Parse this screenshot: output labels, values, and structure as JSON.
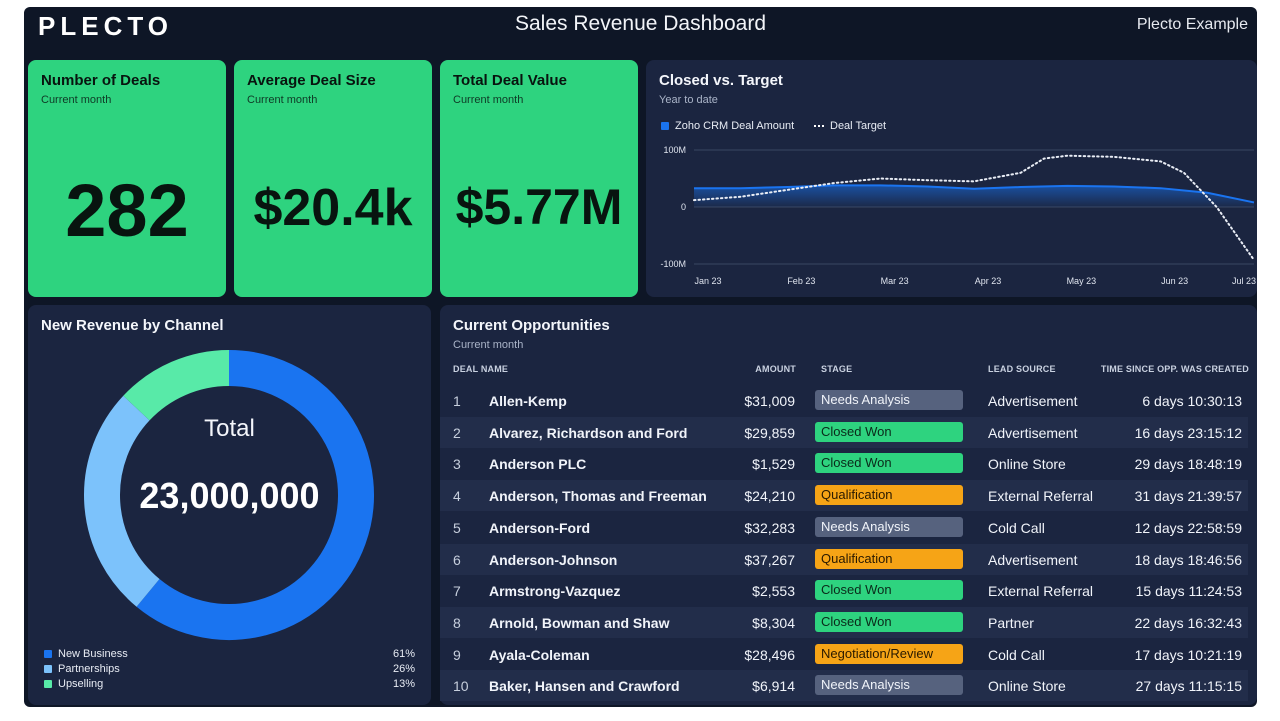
{
  "header": {
    "logo": "PLECTO",
    "title": "Sales Revenue Dashboard",
    "account": "Plecto Example"
  },
  "kpis": [
    {
      "title": "Number of Deals",
      "subtitle": "Current month",
      "value": "282"
    },
    {
      "title": "Average Deal Size",
      "subtitle": "Current month",
      "value": "$20.4k"
    },
    {
      "title": "Total Deal Value",
      "subtitle": "Current month",
      "value": "$5.77M"
    }
  ],
  "colors": {
    "kpi": "#2ed37f",
    "blue": "#1a74f0",
    "light_blue": "#7cc2fb",
    "mint": "#58eaa8",
    "closed_won": "#2ed37f",
    "needs_analysis": "#56627e",
    "qualification": "#f6a416",
    "negotiation": "#f6a416"
  },
  "chart_data": [
    {
      "type": "area",
      "title": "Closed vs. Target",
      "subtitle": "Year to date",
      "x_categories": [
        "Jan 23",
        "Feb 23",
        "Mar 23",
        "Apr 23",
        "May 23",
        "Jun 23",
        "Jul 23"
      ],
      "y_ticks": [
        "100M",
        "0",
        "-100M"
      ],
      "ylim": [
        -100,
        100
      ],
      "series": [
        {
          "name": "Zoho CRM Deal Amount",
          "style": "area",
          "x": [
            0,
            0.5,
            1,
            1.5,
            2,
            2.5,
            3,
            3.5,
            4,
            4.5,
            5,
            5.5,
            6
          ],
          "values": [
            33,
            33,
            35,
            38,
            38,
            36,
            32,
            35,
            37,
            36,
            33,
            25,
            8
          ]
        },
        {
          "name": "Deal Target",
          "style": "dotted",
          "x": [
            0,
            0.5,
            1,
            1.5,
            2,
            2.5,
            3,
            3.5,
            3.75,
            4,
            4.5,
            5,
            5.25,
            5.6,
            6
          ],
          "values": [
            12,
            18,
            30,
            42,
            50,
            47,
            45,
            60,
            85,
            90,
            88,
            80,
            60,
            0,
            -93
          ]
        }
      ]
    },
    {
      "type": "pie",
      "title": "New Revenue by Channel",
      "center_label": "Total",
      "center_value": "23,000,000",
      "slices": [
        {
          "name": "New Business",
          "value": 61,
          "label": "61%"
        },
        {
          "name": "Partnerships",
          "value": 26,
          "label": "26%"
        },
        {
          "name": "Upselling",
          "value": 13,
          "label": "13%"
        }
      ]
    }
  ],
  "opportunities": {
    "title": "Current Opportunities",
    "subtitle": "Current month",
    "columns": [
      "DEAL NAME",
      "AMOUNT",
      "STAGE",
      "LEAD SOURCE",
      "TIME SINCE OPP. WAS CREATED"
    ],
    "rows": [
      {
        "num": "1",
        "name": "Allen-Kemp",
        "amount": "$31,009",
        "stage": "Needs Analysis",
        "stage_kind": "needs_analysis",
        "source": "Advertisement",
        "time": "6 days 10:30:13"
      },
      {
        "num": "2",
        "name": "Alvarez, Richardson and Ford",
        "amount": "$29,859",
        "stage": "Closed Won",
        "stage_kind": "closed_won",
        "source": "Advertisement",
        "time": "16 days 23:15:12"
      },
      {
        "num": "3",
        "name": "Anderson PLC",
        "amount": "$1,529",
        "stage": "Closed Won",
        "stage_kind": "closed_won",
        "source": "Online Store",
        "time": "29 days 18:48:19"
      },
      {
        "num": "4",
        "name": "Anderson, Thomas and Freeman",
        "amount": "$24,210",
        "stage": "Qualification",
        "stage_kind": "qualification",
        "source": "External Referral",
        "time": "31 days 21:39:57"
      },
      {
        "num": "5",
        "name": "Anderson-Ford",
        "amount": "$32,283",
        "stage": "Needs Analysis",
        "stage_kind": "needs_analysis",
        "source": "Cold Call",
        "time": "12 days 22:58:59"
      },
      {
        "num": "6",
        "name": "Anderson-Johnson",
        "amount": "$37,267",
        "stage": "Qualification",
        "stage_kind": "qualification",
        "source": "Advertisement",
        "time": "18 days 18:46:56"
      },
      {
        "num": "7",
        "name": "Armstrong-Vazquez",
        "amount": "$2,553",
        "stage": "Closed Won",
        "stage_kind": "closed_won",
        "source": "External Referral",
        "time": "15 days 11:24:53"
      },
      {
        "num": "8",
        "name": "Arnold, Bowman and Shaw",
        "amount": "$8,304",
        "stage": "Closed Won",
        "stage_kind": "closed_won",
        "source": "Partner",
        "time": "22 days 16:32:43"
      },
      {
        "num": "9",
        "name": "Ayala-Coleman",
        "amount": "$28,496",
        "stage": "Negotiation/Review",
        "stage_kind": "negotiation",
        "source": "Cold Call",
        "time": "17 days 10:21:19"
      },
      {
        "num": "10",
        "name": "Baker, Hansen and Crawford",
        "amount": "$6,914",
        "stage": "Needs Analysis",
        "stage_kind": "needs_analysis",
        "source": "Online Store",
        "time": "27 days 11:15:15"
      }
    ]
  }
}
